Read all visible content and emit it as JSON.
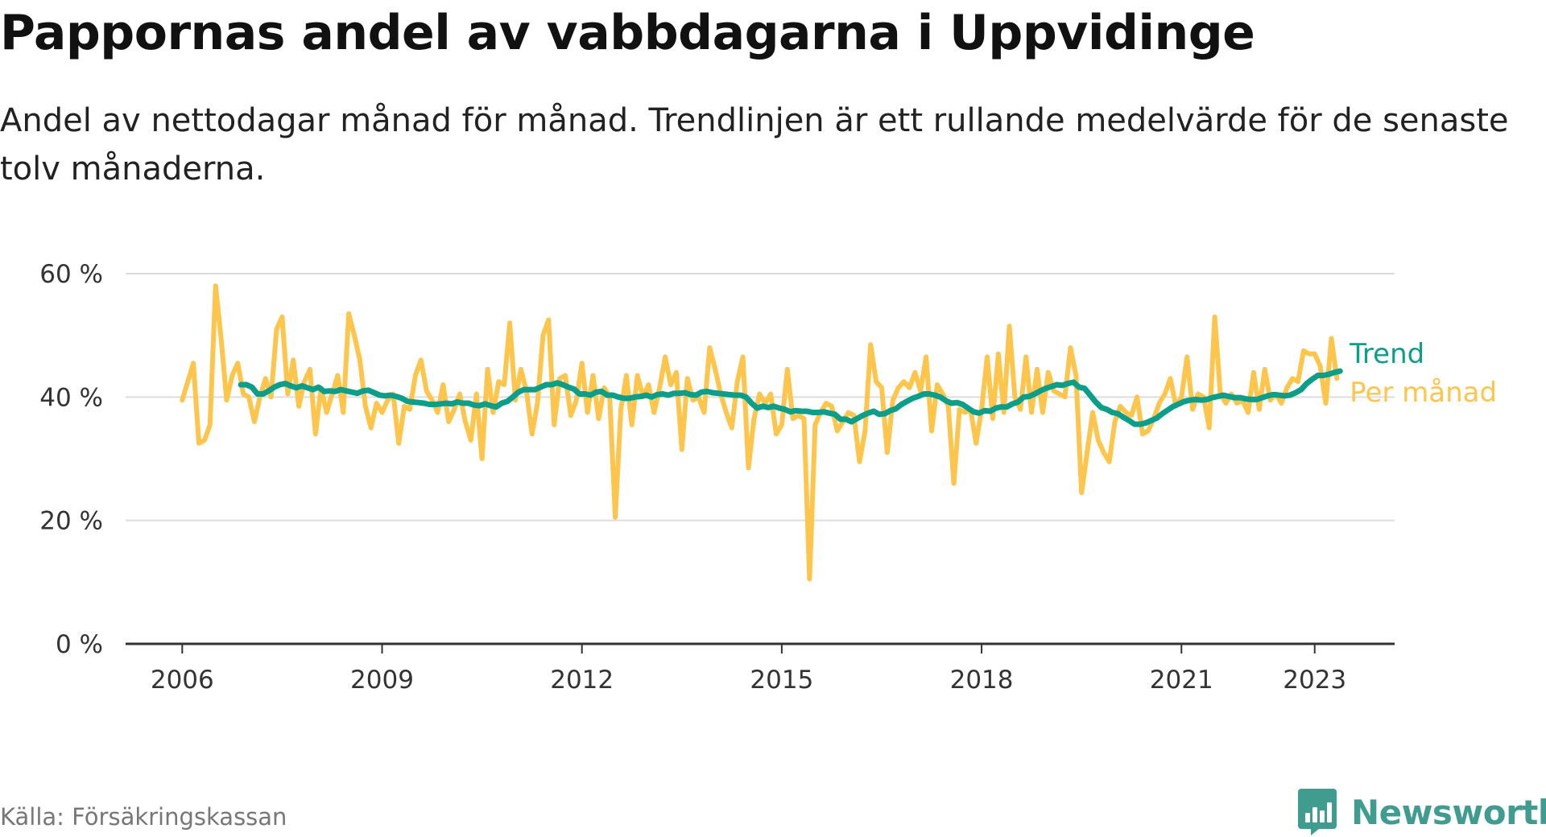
{
  "title": "Pappornas andel av vabbdagarna i Uppvidinge",
  "subtitle": "Andel av nettodagar månad för månad. Trendlinjen är ett rullande medelvärde för de senaste tolv månaderna.",
  "source": "Källa: Försäkringskassan",
  "brand": {
    "name": "Newsworthy",
    "icon": "bar-chart-logo-icon",
    "color": "#3f9c8f"
  },
  "colors": {
    "monthly": "#fdc54b",
    "trend": "#0d9e8a",
    "grid": "#dddddd",
    "axis": "#333333"
  },
  "chart_data": {
    "type": "line",
    "title": "Pappornas andel av vabbdagarna i Uppvidinge",
    "ylim": [
      0,
      60
    ],
    "yticks": [
      0,
      20,
      40,
      60
    ],
    "ytick_labels": [
      "0 %",
      "20 %",
      "40 %",
      "60 %"
    ],
    "xtick_labels": [
      "2006",
      "2009",
      "2012",
      "2015",
      "2018",
      "2021",
      "2023"
    ],
    "xtick_values": [
      2006,
      2009,
      2012,
      2015,
      2018,
      2021,
      2023
    ],
    "x_range": [
      2005.15,
      2024.2
    ],
    "grid": true,
    "legend_position": "right, at line ends",
    "series": [
      {
        "name": "Trend",
        "x_start": 2006.88,
        "x_step": 0.0833333,
        "values": [
          42.0,
          42.0,
          41.6,
          40.5,
          40.5,
          41.0,
          41.6,
          42.0,
          42.2,
          41.8,
          41.5,
          41.8,
          41.5,
          41.2,
          41.6,
          40.9,
          41.0,
          40.9,
          41.2,
          41.0,
          40.8,
          40.6,
          41.0,
          41.1,
          40.7,
          40.3,
          40.2,
          40.3,
          40.1,
          39.8,
          39.3,
          39.2,
          39.1,
          39.0,
          38.8,
          38.8,
          38.9,
          39.0,
          38.9,
          39.2,
          39.0,
          39.0,
          38.7,
          38.6,
          38.9,
          38.6,
          38.4,
          39.0,
          39.3,
          40.0,
          40.8,
          41.2,
          41.2,
          41.2,
          41.6,
          42.0,
          42.0,
          42.3,
          42.0,
          41.6,
          41.3,
          40.5,
          40.5,
          40.3,
          40.8,
          40.9,
          40.3,
          40.3,
          40.0,
          39.8,
          39.8,
          40.0,
          40.1,
          40.3,
          40.0,
          40.4,
          40.5,
          40.3,
          40.6,
          40.6,
          40.7,
          40.4,
          40.3,
          40.8,
          40.9,
          40.7,
          40.6,
          40.5,
          40.4,
          40.3,
          40.3,
          40.0,
          39.0,
          38.2,
          38.5,
          38.3,
          38.5,
          38.2,
          38.0,
          37.6,
          37.8,
          37.7,
          37.7,
          37.5,
          37.5,
          37.6,
          37.4,
          37.2,
          36.4,
          36.4,
          36.0,
          36.5,
          37.0,
          37.4,
          37.7,
          37.2,
          37.3,
          37.8,
          38.1,
          38.8,
          39.3,
          39.8,
          40.1,
          40.5,
          40.5,
          40.3,
          40.0,
          39.4,
          39.0,
          39.1,
          38.8,
          38.2,
          37.6,
          37.4,
          37.8,
          37.7,
          38.2,
          38.4,
          38.4,
          38.9,
          39.2,
          40.0,
          40.1,
          40.5,
          41.0,
          41.4,
          41.7,
          42.0,
          41.9,
          42.2,
          42.4,
          41.6,
          41.4,
          40.3,
          39.2,
          38.3,
          38.0,
          37.5,
          37.3,
          36.7,
          36.2,
          35.6,
          35.6,
          35.8,
          36.2,
          36.6,
          37.3,
          37.9,
          38.5,
          38.9,
          39.3,
          39.5,
          39.6,
          39.5,
          39.6,
          39.9,
          40.1,
          40.3,
          40.1,
          39.9,
          39.9,
          39.7,
          39.6,
          39.6,
          39.9,
          40.2,
          40.4,
          40.3,
          40.2,
          40.3,
          40.7,
          41.2,
          42.2,
          42.9,
          43.5,
          43.5,
          43.7,
          44.0,
          44.2
        ]
      },
      {
        "name": "Per månad",
        "x_start": 2006.0,
        "x_step": 0.0833333,
        "values": [
          39.5,
          42.5,
          45.5,
          32.5,
          33.0,
          35.5,
          58.0,
          49.5,
          39.5,
          43.5,
          45.5,
          40.5,
          40.0,
          36.0,
          40.0,
          43.0,
          40.0,
          51.0,
          53.0,
          40.5,
          46.0,
          38.5,
          42.5,
          44.5,
          34.0,
          41.5,
          37.5,
          40.5,
          43.5,
          37.5,
          53.5,
          50.0,
          46.0,
          38.5,
          35.0,
          39.0,
          37.5,
          39.5,
          40.5,
          32.5,
          38.5,
          38.0,
          43.5,
          46.0,
          41.0,
          39.5,
          37.5,
          42.0,
          36.0,
          38.0,
          40.5,
          36.0,
          33.0,
          40.5,
          30.0,
          44.5,
          37.5,
          42.5,
          42.0,
          52.0,
          39.5,
          44.5,
          41.0,
          34.0,
          39.0,
          50.0,
          52.5,
          35.5,
          43.0,
          43.5,
          37.0,
          39.5,
          45.5,
          37.5,
          43.5,
          36.5,
          41.5,
          40.0,
          20.5,
          38.0,
          43.5,
          35.5,
          43.5,
          40.0,
          42.0,
          37.5,
          41.5,
          46.5,
          42.0,
          44.0,
          31.5,
          43.0,
          39.5,
          40.0,
          37.5,
          48.0,
          44.5,
          40.5,
          37.5,
          35.0,
          42.5,
          46.5,
          28.5,
          36.5,
          40.5,
          39.0,
          40.5,
          34.0,
          35.5,
          44.5,
          36.5,
          37.0,
          36.5,
          10.5,
          35.5,
          37.5,
          39.0,
          38.5,
          34.5,
          36.0,
          37.5,
          37.0,
          29.5,
          34.5,
          48.5,
          42.5,
          41.5,
          31.0,
          39.5,
          41.5,
          42.5,
          41.5,
          44.0,
          41.0,
          46.5,
          34.5,
          42.0,
          40.5,
          38.5,
          26.0,
          38.0,
          37.5,
          38.0,
          32.5,
          38.0,
          46.5,
          36.5,
          47.0,
          37.5,
          51.5,
          40.0,
          38.0,
          46.5,
          37.5,
          44.5,
          37.5,
          44.0,
          41.0,
          40.5,
          40.0,
          48.0,
          43.5,
          24.5,
          31.0,
          37.5,
          33.0,
          31.0,
          29.5,
          36.0,
          38.5,
          37.5,
          37.0,
          40.0,
          34.0,
          34.5,
          36.5,
          39.0,
          40.5,
          43.0,
          38.5,
          40.0,
          46.5,
          38.0,
          40.5,
          40.0,
          35.0,
          53.0,
          40.5,
          39.0,
          40.5,
          39.0,
          39.5,
          37.5,
          44.0,
          38.0,
          44.5,
          39.5,
          40.5,
          39.0,
          41.5,
          43.0,
          42.5,
          47.5,
          47.0,
          47.0,
          45.0,
          39.0,
          49.5,
          43.0
        ]
      }
    ]
  }
}
